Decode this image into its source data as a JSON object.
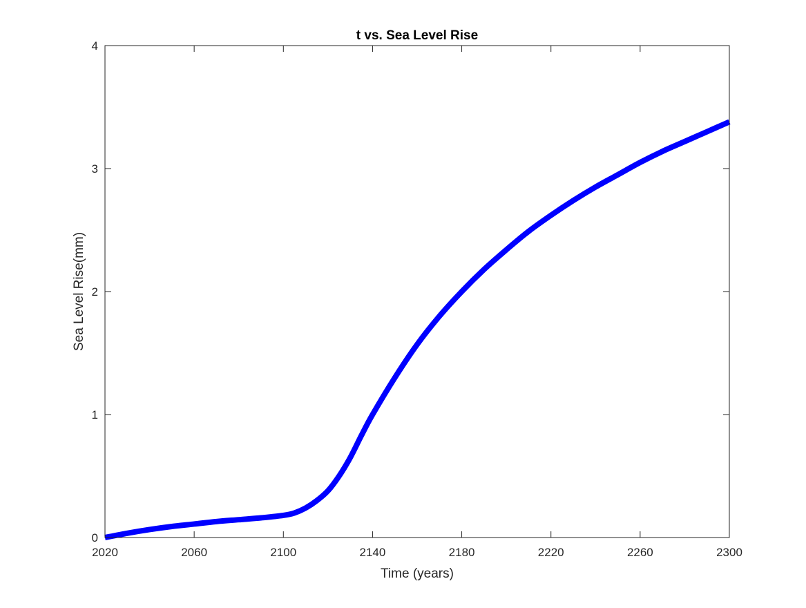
{
  "chart_data": {
    "type": "line",
    "title": "t vs. Sea Level Rise",
    "xlabel": "Time (years)",
    "ylabel": "Sea Level Rise(mm)",
    "xlim": [
      2020,
      2300
    ],
    "ylim": [
      0,
      4
    ],
    "xticks": [
      2020,
      2060,
      2100,
      2140,
      2180,
      2220,
      2260,
      2300
    ],
    "yticks": [
      0,
      1,
      2,
      3,
      4
    ],
    "grid": false,
    "legend": "none",
    "series": [
      {
        "color": "#0000ff",
        "x": [
          2020,
          2030,
          2040,
          2050,
          2060,
          2070,
          2080,
          2090,
          2100,
          2105,
          2110,
          2115,
          2120,
          2125,
          2130,
          2135,
          2140,
          2150,
          2160,
          2170,
          2180,
          2190,
          2200,
          2210,
          2220,
          2230,
          2240,
          2250,
          2260,
          2270,
          2280,
          2290,
          2300
        ],
        "y": [
          0.0,
          0.035,
          0.065,
          0.09,
          0.11,
          0.13,
          0.145,
          0.16,
          0.18,
          0.2,
          0.24,
          0.3,
          0.38,
          0.5,
          0.65,
          0.83,
          1.0,
          1.3,
          1.57,
          1.8,
          2.0,
          2.18,
          2.34,
          2.49,
          2.62,
          2.74,
          2.85,
          2.95,
          3.05,
          3.14,
          3.22,
          3.3,
          3.38
        ]
      }
    ]
  }
}
